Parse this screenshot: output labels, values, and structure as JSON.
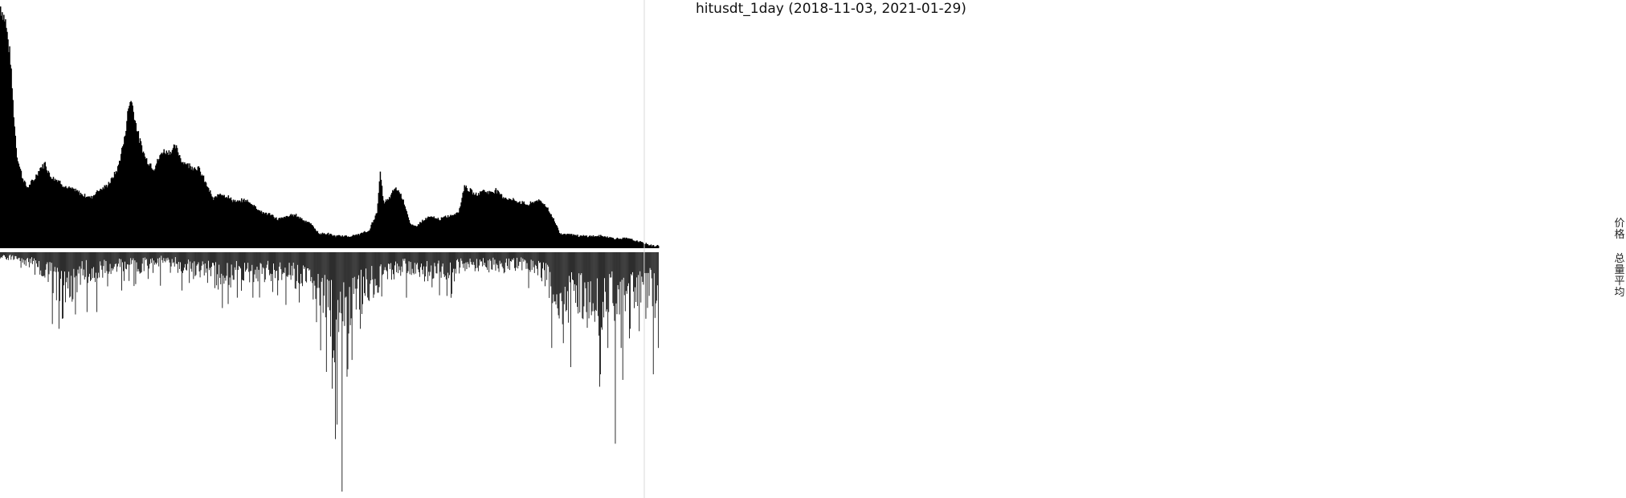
{
  "chart_data": {
    "type": "bar",
    "title": "hitusdt_1day (2018-11-03, 2021-01-29)",
    "x_range": [
      "2018-11-03",
      "2021-01-29"
    ],
    "side_labels": {
      "price": "价格",
      "avg_volume": "总量平均"
    },
    "colors": {
      "bars": "#000000",
      "separator": "#ffffff",
      "cursor_line": "#d9d9d9"
    },
    "series": [
      {
        "name": "价格",
        "keypoints": [
          [
            0,
            1.0
          ],
          [
            6,
            0.94
          ],
          [
            12,
            0.78
          ],
          [
            16,
            0.55
          ],
          [
            20,
            0.38
          ],
          [
            26,
            0.3
          ],
          [
            32,
            0.25
          ],
          [
            40,
            0.28
          ],
          [
            48,
            0.33
          ],
          [
            54,
            0.35
          ],
          [
            60,
            0.3
          ],
          [
            70,
            0.28
          ],
          [
            80,
            0.25
          ],
          [
            90,
            0.24
          ],
          [
            100,
            0.22
          ],
          [
            110,
            0.21
          ],
          [
            118,
            0.24
          ],
          [
            126,
            0.25
          ],
          [
            134,
            0.28
          ],
          [
            142,
            0.33
          ],
          [
            150,
            0.45
          ],
          [
            155,
            0.58
          ],
          [
            158,
            0.62
          ],
          [
            162,
            0.55
          ],
          [
            168,
            0.45
          ],
          [
            176,
            0.37
          ],
          [
            186,
            0.33
          ],
          [
            196,
            0.4
          ],
          [
            206,
            0.4
          ],
          [
            212,
            0.42
          ],
          [
            220,
            0.36
          ],
          [
            230,
            0.34
          ],
          [
            240,
            0.33
          ],
          [
            250,
            0.26
          ],
          [
            258,
            0.2
          ],
          [
            266,
            0.23
          ],
          [
            276,
            0.21
          ],
          [
            286,
            0.19
          ],
          [
            296,
            0.2
          ],
          [
            306,
            0.18
          ],
          [
            316,
            0.15
          ],
          [
            326,
            0.14
          ],
          [
            336,
            0.12
          ],
          [
            346,
            0.13
          ],
          [
            356,
            0.14
          ],
          [
            366,
            0.12
          ],
          [
            376,
            0.1
          ],
          [
            386,
            0.06
          ],
          [
            396,
            0.06
          ],
          [
            406,
            0.05
          ],
          [
            416,
            0.05
          ],
          [
            426,
            0.05
          ],
          [
            436,
            0.06
          ],
          [
            446,
            0.07
          ],
          [
            456,
            0.15
          ],
          [
            460,
            0.31
          ],
          [
            464,
            0.19
          ],
          [
            470,
            0.2
          ],
          [
            478,
            0.25
          ],
          [
            484,
            0.23
          ],
          [
            490,
            0.18
          ],
          [
            496,
            0.1
          ],
          [
            502,
            0.09
          ],
          [
            510,
            0.11
          ],
          [
            520,
            0.13
          ],
          [
            532,
            0.12
          ],
          [
            540,
            0.13
          ],
          [
            550,
            0.14
          ],
          [
            556,
            0.16
          ],
          [
            562,
            0.26
          ],
          [
            568,
            0.24
          ],
          [
            576,
            0.22
          ],
          [
            584,
            0.24
          ],
          [
            592,
            0.23
          ],
          [
            600,
            0.24
          ],
          [
            610,
            0.21
          ],
          [
            620,
            0.2
          ],
          [
            630,
            0.19
          ],
          [
            640,
            0.18
          ],
          [
            650,
            0.2
          ],
          [
            660,
            0.18
          ],
          [
            670,
            0.12
          ],
          [
            678,
            0.06
          ],
          [
            690,
            0.06
          ],
          [
            700,
            0.05
          ],
          [
            715,
            0.05
          ],
          [
            730,
            0.05
          ],
          [
            745,
            0.04
          ],
          [
            760,
            0.04
          ],
          [
            770,
            0.03
          ],
          [
            780,
            0.02
          ],
          [
            790,
            0.01
          ],
          [
            797,
            0.01
          ]
        ]
      },
      {
        "name": "总量平均",
        "keypoints": [
          [
            0,
            0.02
          ],
          [
            20,
            0.03
          ],
          [
            40,
            0.06
          ],
          [
            56,
            0.1
          ],
          [
            66,
            0.14
          ],
          [
            74,
            0.2
          ],
          [
            80,
            0.24
          ],
          [
            86,
            0.16
          ],
          [
            94,
            0.12
          ],
          [
            104,
            0.09
          ],
          [
            114,
            0.12
          ],
          [
            124,
            0.08
          ],
          [
            134,
            0.07
          ],
          [
            144,
            0.06
          ],
          [
            156,
            0.06
          ],
          [
            166,
            0.07
          ],
          [
            176,
            0.06
          ],
          [
            186,
            0.05
          ],
          [
            196,
            0.04
          ],
          [
            206,
            0.05
          ],
          [
            216,
            0.06
          ],
          [
            226,
            0.07
          ],
          [
            236,
            0.09
          ],
          [
            246,
            0.08
          ],
          [
            256,
            0.09
          ],
          [
            266,
            0.1
          ],
          [
            276,
            0.12
          ],
          [
            286,
            0.1
          ],
          [
            296,
            0.09
          ],
          [
            306,
            0.1
          ],
          [
            316,
            0.09
          ],
          [
            326,
            0.1
          ],
          [
            336,
            0.09
          ],
          [
            346,
            0.1
          ],
          [
            356,
            0.12
          ],
          [
            366,
            0.13
          ],
          [
            376,
            0.14
          ],
          [
            386,
            0.18
          ],
          [
            394,
            0.24
          ],
          [
            400,
            0.3
          ],
          [
            406,
            0.36
          ],
          [
            412,
            0.33
          ],
          [
            420,
            0.28
          ],
          [
            430,
            0.24
          ],
          [
            440,
            0.19
          ],
          [
            450,
            0.16
          ],
          [
            460,
            0.13
          ],
          [
            470,
            0.1
          ],
          [
            480,
            0.08
          ],
          [
            490,
            0.07
          ],
          [
            500,
            0.08
          ],
          [
            510,
            0.09
          ],
          [
            520,
            0.1
          ],
          [
            530,
            0.08
          ],
          [
            540,
            0.09
          ],
          [
            550,
            0.08
          ],
          [
            560,
            0.07
          ],
          [
            570,
            0.06
          ],
          [
            580,
            0.06
          ],
          [
            590,
            0.07
          ],
          [
            600,
            0.06
          ],
          [
            610,
            0.07
          ],
          [
            620,
            0.06
          ],
          [
            630,
            0.06
          ],
          [
            640,
            0.06
          ],
          [
            650,
            0.07
          ],
          [
            656,
            0.09
          ],
          [
            662,
            0.13
          ],
          [
            668,
            0.16
          ],
          [
            676,
            0.2
          ],
          [
            684,
            0.25
          ],
          [
            692,
            0.22
          ],
          [
            700,
            0.23
          ],
          [
            708,
            0.26
          ],
          [
            716,
            0.22
          ],
          [
            724,
            0.3
          ],
          [
            732,
            0.22
          ],
          [
            740,
            0.2
          ],
          [
            748,
            0.23
          ],
          [
            756,
            0.25
          ],
          [
            764,
            0.22
          ],
          [
            772,
            0.2
          ],
          [
            780,
            0.23
          ],
          [
            786,
            0.17
          ],
          [
            792,
            0.2
          ],
          [
            797,
            0.24
          ]
        ],
        "spikes": [
          [
            63,
            0.3
          ],
          [
            71,
            0.32
          ],
          [
            91,
            0.26
          ],
          [
            105,
            0.25
          ],
          [
            117,
            0.25
          ],
          [
            147,
            0.16
          ],
          [
            156,
            0.12
          ],
          [
            194,
            0.14
          ],
          [
            220,
            0.16
          ],
          [
            260,
            0.15
          ],
          [
            287,
            0.19
          ],
          [
            306,
            0.19
          ],
          [
            336,
            0.18
          ],
          [
            346,
            0.22
          ],
          [
            362,
            0.21
          ],
          [
            388,
            0.41
          ],
          [
            395,
            0.5
          ],
          [
            402,
            0.57
          ],
          [
            408,
            0.72
          ],
          [
            414,
            1.0
          ],
          [
            420,
            0.52
          ],
          [
            426,
            0.45
          ],
          [
            436,
            0.32
          ],
          [
            446,
            0.2
          ],
          [
            492,
            0.19
          ],
          [
            532,
            0.18
          ],
          [
            640,
            0.15
          ],
          [
            668,
            0.4
          ],
          [
            682,
            0.38
          ],
          [
            691,
            0.48
          ],
          [
            710,
            0.25
          ],
          [
            727,
            0.51
          ],
          [
            736,
            0.4
          ],
          [
            745,
            0.8
          ],
          [
            752,
            0.4
          ],
          [
            762,
            0.36
          ],
          [
            774,
            0.33
          ],
          [
            791,
            0.51
          ],
          [
            797,
            0.4
          ]
        ]
      }
    ]
  }
}
